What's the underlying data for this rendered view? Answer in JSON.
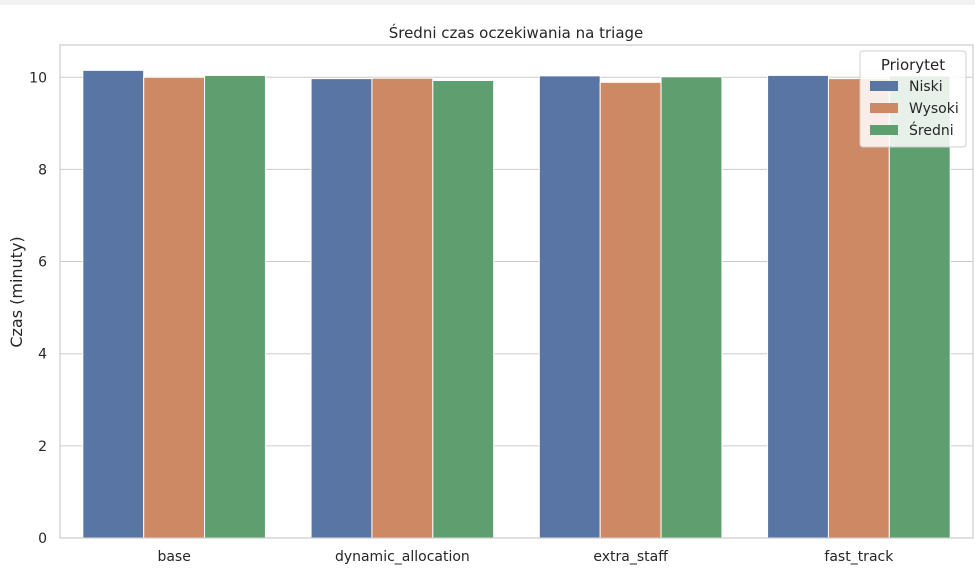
{
  "chart_data": {
    "type": "bar",
    "title": "Średni czas oczekiwania na triage",
    "xlabel": "",
    "ylabel": "Czas (minuty)",
    "ylim": [
      0,
      10.7
    ],
    "yticks": [
      0,
      2,
      4,
      6,
      8,
      10
    ],
    "grid": true,
    "categories": [
      "base",
      "dynamic_allocation",
      "extra_staff",
      "fast_track"
    ],
    "legend": {
      "title": "Priorytet",
      "placement": "top-right"
    },
    "series": [
      {
        "name": "Niski",
        "color": "#5875a4",
        "values": [
          10.15,
          9.97,
          10.03,
          10.04
        ]
      },
      {
        "name": "Wysoki",
        "color": "#cc8963",
        "values": [
          10.0,
          9.98,
          9.89,
          9.97
        ]
      },
      {
        "name": "Średni",
        "color": "#5f9e6e",
        "values": [
          10.04,
          9.93,
          10.01,
          10.03
        ]
      }
    ]
  }
}
